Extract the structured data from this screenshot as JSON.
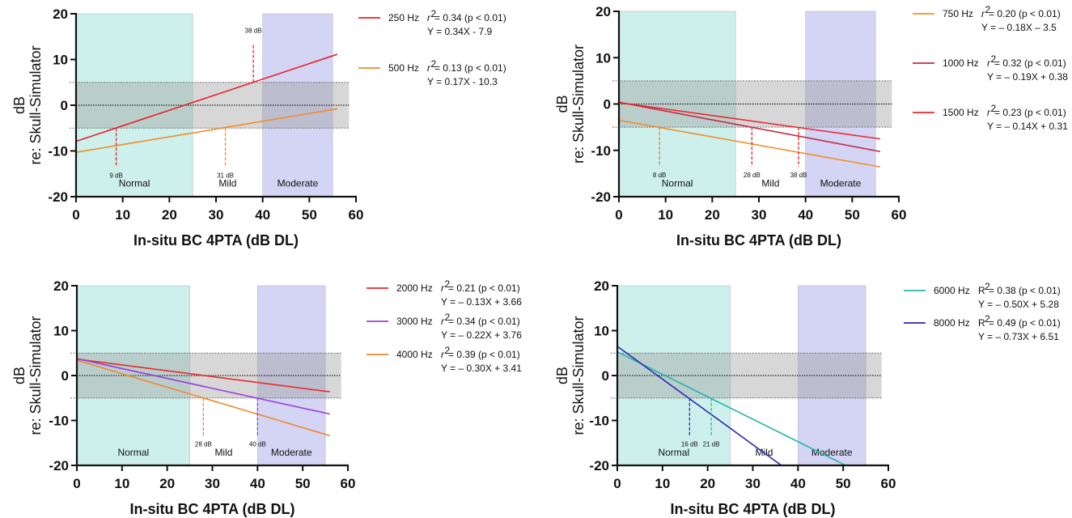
{
  "chart_data": [
    {
      "type": "line",
      "xlabel": "In-situ BC 4PTA (dB DL)",
      "ylabel": [
        "dB",
        "re: Skull-Simulator"
      ],
      "xlim": [
        0,
        60
      ],
      "ylim": [
        -20,
        20
      ],
      "xticks": [
        "0",
        "10",
        "20",
        "30",
        "40",
        "50",
        "60"
      ],
      "yticks": [
        "20",
        "10",
        "0",
        "-10",
        "-20"
      ],
      "regions": [
        {
          "label": "Normal",
          "from": 0,
          "to": 25,
          "color": "#cdf0ec"
        },
        {
          "label": "Mild",
          "from": 25,
          "to": 40,
          "color": "#ffffff"
        },
        {
          "label": "Moderate",
          "from": 40,
          "to": 55,
          "color": "#d4d4f4"
        }
      ],
      "tolerance_band": [
        -5,
        5
      ],
      "series": [
        {
          "name": "250 Hz",
          "stat_symbol": "r",
          "stat_text": " = 0.34 (p < 0.01)",
          "equation": "Y = 0.34X - 7.9",
          "slope": 0.34,
          "intercept": -7.9,
          "x_end": 56,
          "color": "#e8202a"
        },
        {
          "name": "500 Hz",
          "stat_symbol": "r",
          "stat_text": " = 0.13 (p < 0.01)",
          "equation": "Y = 0.17X - 10.3",
          "slope": 0.17,
          "intercept": -10.3,
          "x_end": 56,
          "color": "#f28c28"
        }
      ],
      "annotations": [
        {
          "x": 8.6,
          "y_from": -5,
          "y_to": -13.5,
          "label": "9 dB",
          "color": "#e8202a"
        },
        {
          "x": 32,
          "y_from": -5,
          "y_to": -13.5,
          "label": "31 dB",
          "color": "#f28c28"
        },
        {
          "x": 38,
          "y_from": 5,
          "y_to": 13.5,
          "label": "38 dB",
          "color": "#e8202a"
        }
      ]
    },
    {
      "type": "line",
      "xlabel": "In-situ BC 4PTA (dB DL)",
      "ylabel": [
        "dB",
        "re: Skull-Simulator"
      ],
      "xlim": [
        0,
        60
      ],
      "ylim": [
        -20,
        20
      ],
      "xticks": [
        "0",
        "10",
        "20",
        "30",
        "40",
        "50",
        "60"
      ],
      "yticks": [
        "20",
        "10",
        "0",
        "-10",
        "-20"
      ],
      "regions": [
        {
          "label": "Normal",
          "from": 0,
          "to": 25,
          "color": "#cdf0ec"
        },
        {
          "label": "Mild",
          "from": 25,
          "to": 40,
          "color": "#ffffff"
        },
        {
          "label": "Moderate",
          "from": 40,
          "to": 55,
          "color": "#d4d4f4"
        }
      ],
      "tolerance_band": [
        -5,
        5
      ],
      "series": [
        {
          "name": "750 Hz",
          "stat_symbol": "r",
          "stat_text": " = 0.20 (p < 0.01)",
          "equation": "Y = – 0.18X  – 3.5",
          "slope": -0.18,
          "intercept": -3.5,
          "x_end": 56,
          "color": "#f0902e"
        },
        {
          "name": "1000 Hz",
          "stat_symbol": "r",
          "stat_text": " = 0.32 (p < 0.01)",
          "equation": "Y = – 0.19X + 0.38",
          "slope": -0.19,
          "intercept": 0.38,
          "x_end": 56,
          "color": "#c0284a"
        },
        {
          "name": "1500 Hz",
          "stat_symbol": "r",
          "stat_text": " = 0.23 (p < 0.01)",
          "equation": "Y =  – 0.14X + 0.31",
          "slope": -0.14,
          "intercept": 0.31,
          "x_end": 56,
          "color": "#ee2630"
        }
      ],
      "annotations": [
        {
          "x": 8.7,
          "y_from": -5,
          "y_to": -13.5,
          "label": "8 dB",
          "color": "#d08a30"
        },
        {
          "x": 28.5,
          "y_from": -5,
          "y_to": -13.5,
          "label": "28 dB",
          "color": "#e8202a"
        },
        {
          "x": 38.5,
          "y_from": -5,
          "y_to": -13.5,
          "label": "38 dB",
          "color": "#e8202a"
        }
      ]
    },
    {
      "type": "line",
      "xlabel": "In-situ BC 4PTA (dB DL)",
      "ylabel": [
        "dB",
        "re: Skull-Simulator"
      ],
      "xlim": [
        0,
        60
      ],
      "ylim": [
        -20,
        20
      ],
      "xticks": [
        "0",
        "10",
        "20",
        "30",
        "40",
        "50",
        "60"
      ],
      "yticks": [
        "20",
        "10",
        "0",
        "-10",
        "-20"
      ],
      "regions": [
        {
          "label": "Normal",
          "from": 0,
          "to": 25,
          "color": "#cdf0ec"
        },
        {
          "label": "Mild",
          "from": 25,
          "to": 40,
          "color": "#ffffff"
        },
        {
          "label": "Moderate",
          "from": 40,
          "to": 55,
          "color": "#d4d4f4"
        }
      ],
      "tolerance_band": [
        -5,
        5
      ],
      "series": [
        {
          "name": "2000 Hz",
          "stat_symbol": "r",
          "stat_text": " = 0.21 (p < 0.01)",
          "equation": "Y = – 0.13X + 3.66",
          "slope": -0.13,
          "intercept": 3.66,
          "x_end": 56,
          "color": "#e52a2a"
        },
        {
          "name": "3000 Hz",
          "stat_symbol": "r",
          "stat_text": " = 0.34 (p < 0.01)",
          "equation": "Y = – 0.22X + 3.76",
          "slope": -0.22,
          "intercept": 3.76,
          "x_end": 56,
          "color": "#9a3fe0"
        },
        {
          "name": "4000 Hz",
          "stat_symbol": "r",
          "stat_text": " = 0.39 (p < 0.01)",
          "equation": "Y =  – 0.30X + 3.41",
          "slope": -0.3,
          "intercept": 3.41,
          "x_end": 56,
          "color": "#ee8a30"
        }
      ],
      "annotations": [
        {
          "x": 28,
          "y_from": -5,
          "y_to": -13.5,
          "label": "28 dB",
          "color": "#ee8a30"
        },
        {
          "x": 40,
          "y_from": -5,
          "y_to": -13.5,
          "label": "40 dB",
          "color": "#9a3fe0"
        }
      ]
    },
    {
      "type": "line",
      "xlabel": "In-situ BC 4PTA (dB DL)",
      "ylabel": [
        "dB",
        "re: Skull-Simulator"
      ],
      "xlim": [
        0,
        60
      ],
      "ylim": [
        -20,
        20
      ],
      "xticks": [
        "0",
        "10",
        "20",
        "30",
        "40",
        "50",
        "60"
      ],
      "yticks": [
        "20",
        "10",
        "0",
        "-10",
        "-20"
      ],
      "regions": [
        {
          "label": "Normal",
          "from": 0,
          "to": 25,
          "color": "#cdf0ec"
        },
        {
          "label": "Mild",
          "from": 25,
          "to": 40,
          "color": "#ffffff"
        },
        {
          "label": "Moderate",
          "from": 40,
          "to": 55,
          "color": "#d4d4f4"
        }
      ],
      "tolerance_band": [
        -5,
        5
      ],
      "series": [
        {
          "name": "6000 Hz",
          "stat_symbol": "R",
          "stat_text": " = 0.38 (p < 0.01)",
          "equation": "Y = – 0.50X + 5.28",
          "slope": -0.5,
          "intercept": 5.28,
          "x_end": 56,
          "color": "#2ab5a8"
        },
        {
          "name": "8000 Hz",
          "stat_symbol": "R",
          "stat_text": " = 0.49 (p < 0.01)",
          "equation": "Y = – 0.73X + 6.51",
          "slope": -0.73,
          "intercept": 6.51,
          "x_end": 56,
          "color": "#2a2ab8"
        }
      ],
      "annotations": [
        {
          "x": 16,
          "y_from": -5,
          "y_to": -13.5,
          "label": "16 dB",
          "color": "#2a2ab8"
        },
        {
          "x": 20.8,
          "y_from": -5,
          "y_to": -13.5,
          "label": "21 dB",
          "color": "#2ab5a8"
        }
      ]
    }
  ]
}
